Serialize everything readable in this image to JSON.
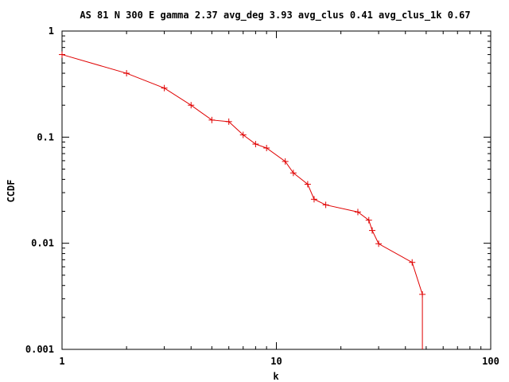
{
  "chart_data": {
    "type": "line",
    "title": "AS 81 N 300 E gamma 2.37 avg_deg 3.93 avg_clus 0.41 avg_clus_1k 0.67",
    "xlabel": "k",
    "ylabel": "CCDF",
    "xscale": "log",
    "yscale": "log",
    "xlim": [
      1,
      100
    ],
    "ylim": [
      0.001,
      1
    ],
    "x_ticks": [
      {
        "value": 1,
        "label": "1"
      },
      {
        "value": 10,
        "label": "10"
      },
      {
        "value": 100,
        "label": "100"
      }
    ],
    "y_ticks": [
      {
        "value": 1,
        "label": "1"
      },
      {
        "value": 0.1,
        "label": "0.1"
      },
      {
        "value": 0.01,
        "label": "0.01"
      },
      {
        "value": 0.001,
        "label": "0.001"
      }
    ],
    "grid": false,
    "legend": "none",
    "color": "#e00000",
    "marker": "plus",
    "series": [
      {
        "x": [
          1,
          2,
          3,
          4,
          5,
          6,
          7,
          8,
          9,
          11,
          12,
          14,
          15,
          17,
          24,
          27,
          28,
          30,
          43,
          48,
          48
        ],
        "y": [
          0.6,
          0.4,
          0.29,
          0.2,
          0.145,
          0.14,
          0.105,
          0.086,
          0.079,
          0.059,
          0.046,
          0.036,
          0.026,
          0.023,
          0.0197,
          0.0165,
          0.0132,
          0.0099,
          0.0066,
          0.0033,
          0.001
        ]
      }
    ]
  }
}
